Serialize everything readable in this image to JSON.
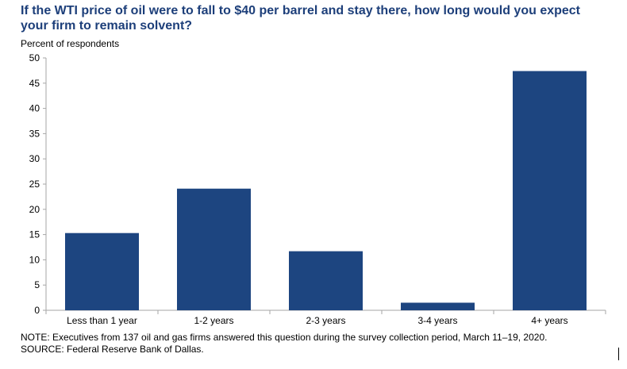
{
  "chart_data": {
    "type": "bar",
    "title": "If the WTI price of oil were to fall to $40 per barrel and stay there, how long would you expect your firm to remain solvent?",
    "ylabel": "Percent of respondents",
    "xlabel": "",
    "categories": [
      "Less than 1 year",
      "1-2 years",
      "2-3 years",
      "3-4 years",
      "4+ years"
    ],
    "values": [
      15.3,
      24.1,
      11.7,
      1.5,
      47.4
    ],
    "ylim": [
      0,
      50
    ],
    "yticks": [
      0,
      5,
      10,
      15,
      20,
      25,
      30,
      35,
      40,
      45,
      50
    ],
    "grid": false,
    "bar_color": "#1d4580",
    "note": "NOTE: Executives from 137 oil and gas firms answered this question during the survey collection period, March 11–19, 2020.",
    "source": "SOURCE: Federal Reserve Bank of Dallas."
  }
}
